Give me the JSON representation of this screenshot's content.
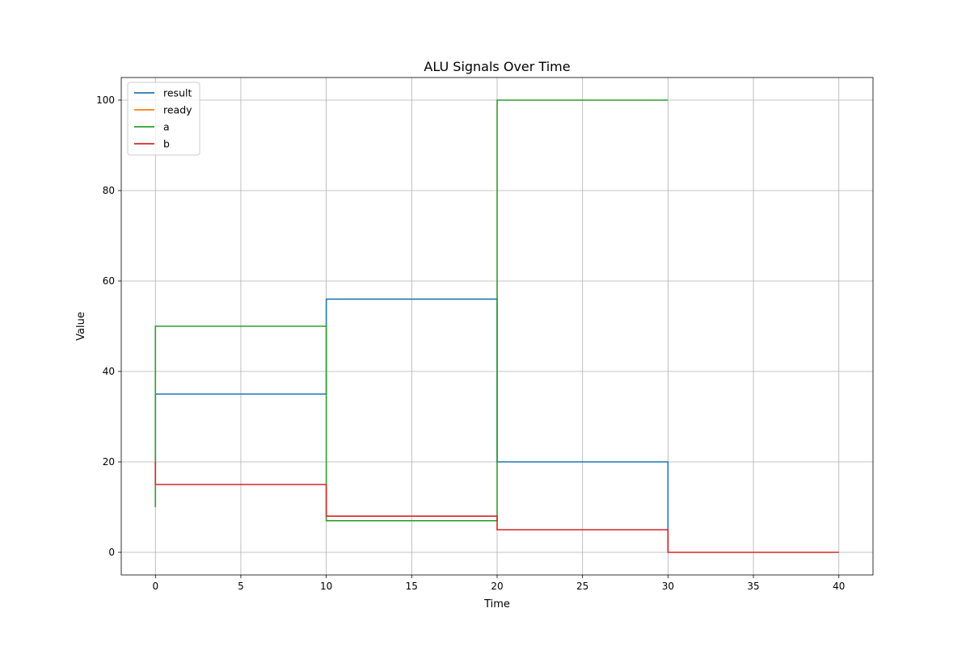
{
  "chart_data": {
    "type": "line",
    "step": "post",
    "title": "ALU Signals Over Time",
    "xlabel": "Time",
    "ylabel": "Value",
    "xlim": [
      -2,
      42
    ],
    "ylim": [
      -5,
      105
    ],
    "xticks": [
      0,
      5,
      10,
      15,
      20,
      25,
      30,
      35,
      40
    ],
    "yticks": [
      0,
      20,
      40,
      60,
      80,
      100
    ],
    "grid": true,
    "legend_position": "top-left",
    "series": [
      {
        "name": "result",
        "color": "#1f77b4",
        "x": [
          0,
          0,
          10,
          10,
          20,
          20,
          30,
          30
        ],
        "y": [
          20,
          35,
          35,
          56,
          56,
          20,
          20,
          0
        ]
      },
      {
        "name": "ready",
        "color": "#ff7f0e",
        "x": [],
        "y": []
      },
      {
        "name": "a",
        "color": "#2ca02c",
        "x": [
          0,
          0,
          10,
          10,
          20,
          20,
          30
        ],
        "y": [
          10,
          50,
          50,
          7,
          7,
          100,
          100
        ]
      },
      {
        "name": "b",
        "color": "#d62728",
        "x": [
          0,
          0,
          10,
          10,
          20,
          20,
          30,
          30,
          40
        ],
        "y": [
          20,
          15,
          15,
          8,
          8,
          5,
          5,
          0,
          0
        ]
      }
    ]
  }
}
